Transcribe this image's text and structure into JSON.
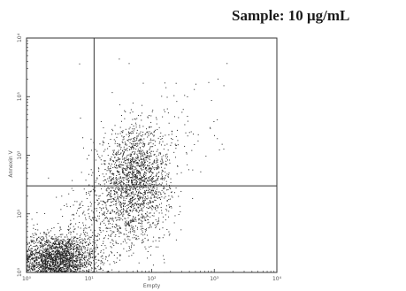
{
  "title": "Sample: 10 μg/mL",
  "chart_data": {
    "type": "scatter",
    "xlabel": "Empty",
    "ylabel": "Annexin V",
    "x_scale": "log",
    "y_scale": "log",
    "xlim": [
      1,
      10000
    ],
    "ylim": [
      1,
      10000
    ],
    "x_ticks": [
      "10⁰",
      "10¹",
      "10²",
      "10³",
      "10⁴"
    ],
    "y_ticks": [
      "10⁰",
      "10¹",
      "10²",
      "10³",
      "10⁴"
    ],
    "quadrant_gate": {
      "x": 12,
      "y": 30
    },
    "grid": false,
    "legend": "none",
    "point_color": "#222222",
    "populations": [
      {
        "center": [
          3,
          1.6
        ],
        "spread": [
          0.32,
          0.22
        ],
        "count": 2600
      },
      {
        "center": [
          55,
          40
        ],
        "spread": [
          0.28,
          0.42
        ],
        "count": 1700
      },
      {
        "center": [
          25,
          8
        ],
        "spread": [
          0.42,
          0.35
        ],
        "count": 500
      },
      {
        "center": [
          200,
          300
        ],
        "spread": [
          0.45,
          0.5
        ],
        "count": 120
      }
    ]
  }
}
